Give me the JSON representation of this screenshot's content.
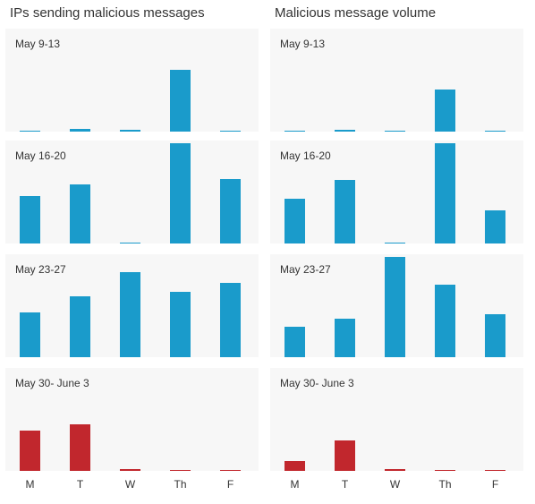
{
  "chart_data": [
    {
      "type": "bar",
      "title": "IPs sending malicious messages",
      "categories": [
        "M",
        "T",
        "W",
        "Th",
        "F"
      ],
      "panels": [
        {
          "label": "May 9-13",
          "color": "#1a9bcb",
          "values": [
            1,
            3,
            2,
            62,
            1
          ]
        },
        {
          "label": "May 16-20",
          "color": "#1a9bcb",
          "values": [
            47,
            59,
            1,
            100,
            64
          ]
        },
        {
          "label": "May 23-27",
          "color": "#1a9bcb",
          "values": [
            45,
            61,
            85,
            65,
            74
          ]
        },
        {
          "label": "May 30- June 3",
          "color": "#c1272d",
          "values": [
            40,
            46,
            2,
            1,
            1
          ]
        }
      ],
      "ylim": [
        0,
        100
      ]
    },
    {
      "type": "bar",
      "title": "Malicious message volume",
      "categories": [
        "M",
        "T",
        "W",
        "Th",
        "F"
      ],
      "panels": [
        {
          "label": "May 9-13",
          "color": "#1a9bcb",
          "values": [
            1,
            2,
            1,
            42,
            1
          ]
        },
        {
          "label": "May 16-20",
          "color": "#1a9bcb",
          "values": [
            45,
            63,
            1,
            100,
            33
          ]
        },
        {
          "label": "May 23-27",
          "color": "#1a9bcb",
          "values": [
            30,
            38,
            100,
            72,
            43
          ]
        },
        {
          "label": "May 30- June 3",
          "color": "#c1272d",
          "values": [
            10,
            30,
            2,
            1,
            1
          ]
        }
      ],
      "ylim": [
        0,
        100
      ]
    }
  ]
}
